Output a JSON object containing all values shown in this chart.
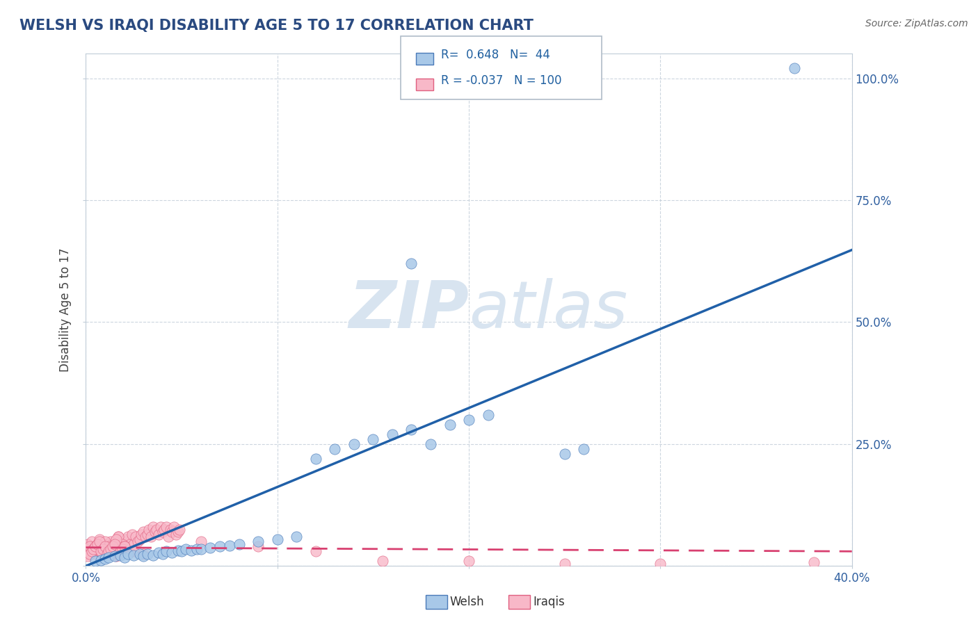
{
  "title": "WELSH VS IRAQI DISABILITY AGE 5 TO 17 CORRELATION CHART",
  "source": "Source: ZipAtlas.com",
  "ylabel_label": "Disability Age 5 to 17",
  "x_min": 0.0,
  "x_max": 0.4,
  "y_min": 0.0,
  "y_max": 1.05,
  "x_ticks": [
    0.0,
    0.1,
    0.2,
    0.3,
    0.4
  ],
  "x_tick_labels": [
    "0.0%",
    "",
    "",
    "",
    "40.0%"
  ],
  "y_ticks": [
    0.0,
    0.25,
    0.5,
    0.75,
    1.0
  ],
  "y_tick_labels_right": [
    "",
    "25.0%",
    "50.0%",
    "75.0%",
    "100.0%"
  ],
  "welsh_color": "#a8c8e8",
  "welsh_edge_color": "#4a7ab8",
  "welsh_line_color": "#2060a8",
  "iraqi_color": "#f8b8c8",
  "iraqi_edge_color": "#e06080",
  "iraqi_line_color": "#d84070",
  "watermark_color": "#d8e4f0",
  "R_welsh": 0.648,
  "N_welsh": 44,
  "R_iraqi": -0.037,
  "N_iraqi": 100,
  "welsh_x": [
    0.005,
    0.008,
    0.01,
    0.012,
    0.015,
    0.018,
    0.02,
    0.022,
    0.025,
    0.028,
    0.03,
    0.032,
    0.035,
    0.038,
    0.04,
    0.042,
    0.045,
    0.048,
    0.05,
    0.052,
    0.055,
    0.058,
    0.06,
    0.065,
    0.07,
    0.075,
    0.08,
    0.09,
    0.1,
    0.11,
    0.12,
    0.13,
    0.14,
    0.15,
    0.16,
    0.17,
    0.18,
    0.19,
    0.2,
    0.21,
    0.17,
    0.25,
    0.26,
    0.37
  ],
  "welsh_y": [
    0.01,
    0.012,
    0.015,
    0.018,
    0.02,
    0.022,
    0.018,
    0.025,
    0.022,
    0.025,
    0.02,
    0.025,
    0.022,
    0.028,
    0.025,
    0.03,
    0.028,
    0.032,
    0.03,
    0.035,
    0.032,
    0.035,
    0.035,
    0.038,
    0.04,
    0.042,
    0.045,
    0.05,
    0.055,
    0.06,
    0.22,
    0.24,
    0.25,
    0.26,
    0.27,
    0.28,
    0.25,
    0.29,
    0.3,
    0.31,
    0.62,
    0.23,
    0.24,
    1.02
  ],
  "iraqi_x_dense": [
    0.0,
    0.001,
    0.002,
    0.003,
    0.004,
    0.005,
    0.006,
    0.007,
    0.008,
    0.009,
    0.01,
    0.011,
    0.012,
    0.013,
    0.014,
    0.015,
    0.016,
    0.017,
    0.018,
    0.019,
    0.02,
    0.021,
    0.022,
    0.023,
    0.024,
    0.025,
    0.026,
    0.027,
    0.028,
    0.029,
    0.03,
    0.031,
    0.032,
    0.033,
    0.034,
    0.035,
    0.036,
    0.037,
    0.038,
    0.039,
    0.04,
    0.041,
    0.042,
    0.043,
    0.044,
    0.045,
    0.046,
    0.047,
    0.048,
    0.049,
    0.001,
    0.003,
    0.005,
    0.007,
    0.009,
    0.011,
    0.013,
    0.015,
    0.017,
    0.019,
    0.002,
    0.004,
    0.006,
    0.008,
    0.01,
    0.012,
    0.014,
    0.016,
    0.018,
    0.02,
    0.001,
    0.002,
    0.003,
    0.004,
    0.005,
    0.006,
    0.007,
    0.008,
    0.009,
    0.01,
    0.011,
    0.012,
    0.013,
    0.014,
    0.015,
    0.016,
    0.017,
    0.018,
    0.019,
    0.02,
    0.025,
    0.03,
    0.06,
    0.09,
    0.12,
    0.155,
    0.2,
    0.25,
    0.3,
    0.38
  ],
  "iraqi_y_dense": [
    0.03,
    0.025,
    0.035,
    0.03,
    0.04,
    0.025,
    0.035,
    0.03,
    0.04,
    0.025,
    0.035,
    0.03,
    0.035,
    0.04,
    0.025,
    0.05,
    0.03,
    0.06,
    0.035,
    0.04,
    0.05,
    0.055,
    0.06,
    0.045,
    0.065,
    0.045,
    0.06,
    0.05,
    0.055,
    0.065,
    0.07,
    0.06,
    0.065,
    0.075,
    0.06,
    0.08,
    0.07,
    0.075,
    0.065,
    0.08,
    0.07,
    0.075,
    0.08,
    0.06,
    0.075,
    0.07,
    0.08,
    0.065,
    0.07,
    0.075,
    0.045,
    0.05,
    0.04,
    0.055,
    0.035,
    0.045,
    0.05,
    0.04,
    0.06,
    0.045,
    0.04,
    0.035,
    0.045,
    0.03,
    0.05,
    0.04,
    0.035,
    0.055,
    0.03,
    0.04,
    0.02,
    0.025,
    0.03,
    0.035,
    0.04,
    0.045,
    0.05,
    0.03,
    0.035,
    0.04,
    0.025,
    0.03,
    0.035,
    0.04,
    0.045,
    0.02,
    0.025,
    0.03,
    0.035,
    0.04,
    0.03,
    0.025,
    0.05,
    0.04,
    0.03,
    0.01,
    0.01,
    0.005,
    0.005,
    0.008
  ]
}
